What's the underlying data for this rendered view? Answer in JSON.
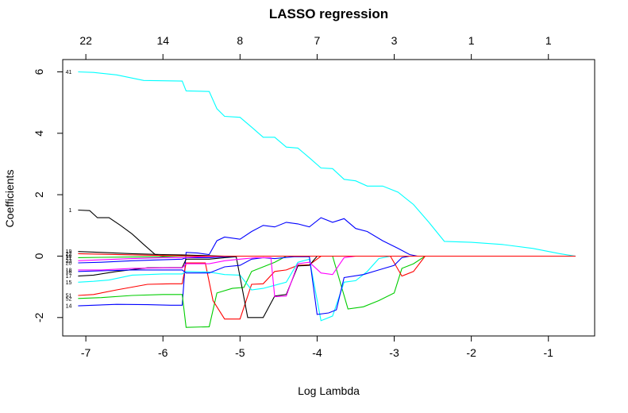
{
  "chart_data": {
    "type": "line",
    "title": "LASSO regression",
    "xlabel": "Log Lambda",
    "ylabel": "Coefficients",
    "xlim": [
      -7.3,
      -0.4
    ],
    "ylim": [
      -2.6,
      6.4
    ],
    "x_ticks": [
      -7,
      -6,
      -5,
      -4,
      -3,
      -2,
      -1
    ],
    "y_ticks": [
      -2,
      0,
      2,
      4,
      6
    ],
    "top_axis_ticks": [
      {
        "x": -7,
        "label": "22"
      },
      {
        "x": -6,
        "label": "14"
      },
      {
        "x": -5,
        "label": "8"
      },
      {
        "x": -4,
        "label": "7"
      },
      {
        "x": -3,
        "label": "3"
      },
      {
        "x": -2,
        "label": "1"
      },
      {
        "x": -1,
        "label": "1"
      }
    ],
    "grid": false,
    "legend": "none",
    "series": [
      {
        "name": "41",
        "color": "#00FFFF",
        "points": [
          [
            -7.1,
            6.0
          ],
          [
            -6.9,
            5.98
          ],
          [
            -6.6,
            5.9
          ],
          [
            -6.25,
            5.72
          ],
          [
            -5.75,
            5.7
          ],
          [
            -5.7,
            5.38
          ],
          [
            -5.4,
            5.36
          ],
          [
            -5.3,
            4.8
          ],
          [
            -5.2,
            4.55
          ],
          [
            -5.0,
            4.52
          ],
          [
            -4.85,
            4.2
          ],
          [
            -4.7,
            3.87
          ],
          [
            -4.55,
            3.87
          ],
          [
            -4.4,
            3.55
          ],
          [
            -4.25,
            3.52
          ],
          [
            -4.1,
            3.2
          ],
          [
            -3.95,
            2.87
          ],
          [
            -3.8,
            2.85
          ],
          [
            -3.65,
            2.5
          ],
          [
            -3.5,
            2.45
          ],
          [
            -3.35,
            2.28
          ],
          [
            -3.15,
            2.28
          ],
          [
            -2.95,
            2.08
          ],
          [
            -2.75,
            1.68
          ],
          [
            -2.55,
            1.1
          ],
          [
            -2.35,
            0.48
          ],
          [
            -2.0,
            0.45
          ],
          [
            -1.6,
            0.38
          ],
          [
            -1.2,
            0.25
          ],
          [
            -0.85,
            0.08
          ],
          [
            -0.65,
            0.0
          ]
        ]
      },
      {
        "name": "1",
        "color": "#000000",
        "points": [
          [
            -7.1,
            1.5
          ],
          [
            -6.95,
            1.48
          ],
          [
            -6.85,
            1.25
          ],
          [
            -6.7,
            1.25
          ],
          [
            -6.55,
            1.0
          ],
          [
            -6.4,
            0.72
          ],
          [
            -6.25,
            0.38
          ],
          [
            -6.1,
            0.05
          ],
          [
            -6.0,
            0.0
          ],
          [
            -0.65,
            0.0
          ]
        ]
      },
      {
        "name": "14",
        "color": "#0000FF",
        "points": [
          [
            -7.1,
            -1.62
          ],
          [
            -6.9,
            -1.6
          ],
          [
            -6.6,
            -1.57
          ],
          [
            -6.2,
            -1.58
          ],
          [
            -5.9,
            -1.6
          ],
          [
            -5.75,
            -1.6
          ],
          [
            -5.7,
            0.12
          ],
          [
            -5.55,
            0.1
          ],
          [
            -5.4,
            0.05
          ],
          [
            -5.3,
            0.5
          ],
          [
            -5.2,
            0.62
          ],
          [
            -5.0,
            0.55
          ],
          [
            -4.85,
            0.8
          ],
          [
            -4.7,
            1.0
          ],
          [
            -4.55,
            0.95
          ],
          [
            -4.4,
            1.1
          ],
          [
            -4.25,
            1.05
          ],
          [
            -4.1,
            0.95
          ],
          [
            -3.95,
            1.25
          ],
          [
            -3.8,
            1.1
          ],
          [
            -3.65,
            1.22
          ],
          [
            -3.5,
            0.9
          ],
          [
            -3.35,
            0.8
          ],
          [
            -3.15,
            0.5
          ],
          [
            -2.95,
            0.25
          ],
          [
            -2.8,
            0.05
          ],
          [
            -2.7,
            0.0
          ],
          [
            -0.65,
            0.0
          ]
        ]
      },
      {
        "name": "52",
        "color": "#00CD00",
        "points": [
          [
            -7.1,
            -1.38
          ],
          [
            -6.8,
            -1.35
          ],
          [
            -6.4,
            -1.28
          ],
          [
            -6.0,
            -1.25
          ],
          [
            -5.75,
            -1.25
          ],
          [
            -5.7,
            -2.32
          ],
          [
            -5.4,
            -2.3
          ],
          [
            -5.3,
            -1.2
          ],
          [
            -5.1,
            -1.05
          ],
          [
            -4.95,
            -1.02
          ],
          [
            -4.85,
            -0.5
          ],
          [
            -4.7,
            -0.35
          ],
          [
            -4.55,
            -0.2
          ],
          [
            -4.4,
            0.0
          ],
          [
            -3.8,
            0.0
          ],
          [
            -3.6,
            -1.72
          ],
          [
            -3.4,
            -1.65
          ],
          [
            -3.2,
            -1.45
          ],
          [
            -3.0,
            -1.2
          ],
          [
            -2.9,
            -0.4
          ],
          [
            -2.75,
            -0.25
          ],
          [
            -2.6,
            0.0
          ],
          [
            -0.65,
            0.0
          ]
        ]
      },
      {
        "name": "51",
        "color": "#FF0000",
        "points": [
          [
            -7.1,
            -1.28
          ],
          [
            -6.9,
            -1.25
          ],
          [
            -6.6,
            -1.1
          ],
          [
            -6.2,
            -0.92
          ],
          [
            -5.9,
            -0.9
          ],
          [
            -5.75,
            -0.9
          ],
          [
            -5.7,
            -0.22
          ],
          [
            -5.45,
            -0.22
          ],
          [
            -5.35,
            -1.45
          ],
          [
            -5.2,
            -2.05
          ],
          [
            -5.0,
            -2.05
          ],
          [
            -4.85,
            -0.92
          ],
          [
            -4.7,
            -0.9
          ],
          [
            -4.55,
            -0.5
          ],
          [
            -4.4,
            -0.45
          ],
          [
            -4.25,
            -0.3
          ],
          [
            -4.1,
            -0.28
          ],
          [
            -3.95,
            0.0
          ],
          [
            -3.05,
            0.0
          ],
          [
            -2.9,
            -0.65
          ],
          [
            -2.75,
            -0.5
          ],
          [
            -2.6,
            0.0
          ],
          [
            -0.65,
            0.0
          ]
        ]
      },
      {
        "name": "15",
        "color": "#00FFFF",
        "points": [
          [
            -7.1,
            -0.85
          ],
          [
            -6.9,
            -0.82
          ],
          [
            -6.7,
            -0.78
          ],
          [
            -6.4,
            -0.62
          ],
          [
            -6.0,
            -0.58
          ],
          [
            -5.75,
            -0.58
          ],
          [
            -5.7,
            -0.5
          ],
          [
            -5.4,
            -0.52
          ],
          [
            -5.2,
            -0.6
          ],
          [
            -5.0,
            -0.62
          ],
          [
            -4.85,
            -1.1
          ],
          [
            -4.7,
            -1.05
          ],
          [
            -4.55,
            -0.95
          ],
          [
            -4.4,
            -0.85
          ],
          [
            -4.25,
            -0.2
          ],
          [
            -4.1,
            -0.1
          ],
          [
            -3.95,
            -2.1
          ],
          [
            -3.8,
            -1.95
          ],
          [
            -3.65,
            -0.85
          ],
          [
            -3.5,
            -0.8
          ],
          [
            -3.35,
            -0.5
          ],
          [
            -3.2,
            -0.08
          ],
          [
            -3.05,
            0.0
          ],
          [
            -0.65,
            0.0
          ]
        ]
      },
      {
        "name": "17",
        "color": "#000000",
        "points": [
          [
            -7.1,
            -0.65
          ],
          [
            -6.9,
            -0.62
          ],
          [
            -6.6,
            -0.5
          ],
          [
            -6.2,
            -0.38
          ],
          [
            -5.75,
            -0.37
          ],
          [
            -5.7,
            -0.1
          ],
          [
            -5.4,
            -0.1
          ],
          [
            -5.2,
            -0.05
          ],
          [
            -5.05,
            -0.02
          ],
          [
            -4.9,
            -2.0
          ],
          [
            -4.7,
            -2.0
          ],
          [
            -4.55,
            -1.3
          ],
          [
            -4.4,
            -1.25
          ],
          [
            -4.25,
            -0.32
          ],
          [
            -4.1,
            -0.3
          ],
          [
            -4.0,
            0.0
          ],
          [
            -0.65,
            0.0
          ]
        ]
      },
      {
        "name": "18",
        "color": "#0000FF",
        "points": [
          [
            -7.1,
            -0.5
          ],
          [
            -6.8,
            -0.48
          ],
          [
            -6.4,
            -0.45
          ],
          [
            -6.0,
            -0.45
          ],
          [
            -5.75,
            -0.45
          ],
          [
            -5.7,
            -0.55
          ],
          [
            -5.4,
            -0.55
          ],
          [
            -5.2,
            -0.35
          ],
          [
            -5.0,
            -0.3
          ],
          [
            -4.85,
            -0.1
          ],
          [
            -4.7,
            -0.05
          ],
          [
            -4.55,
            -0.08
          ],
          [
            -4.3,
            -0.02
          ],
          [
            -4.1,
            -0.02
          ],
          [
            -4.0,
            -1.9
          ],
          [
            -3.85,
            -1.85
          ],
          [
            -3.75,
            -1.75
          ],
          [
            -3.65,
            -0.7
          ],
          [
            -3.4,
            -0.6
          ],
          [
            -3.2,
            -0.45
          ],
          [
            -3.0,
            -0.3
          ],
          [
            -2.9,
            -0.05
          ],
          [
            -2.8,
            0.0
          ],
          [
            -0.65,
            0.0
          ]
        ]
      },
      {
        "name": "16",
        "color": "#FF00FF",
        "points": [
          [
            -7.1,
            -0.45
          ],
          [
            -6.8,
            -0.45
          ],
          [
            -6.4,
            -0.4
          ],
          [
            -6.0,
            -0.38
          ],
          [
            -5.75,
            -0.38
          ],
          [
            -5.7,
            -0.25
          ],
          [
            -5.4,
            -0.25
          ],
          [
            -5.2,
            -0.15
          ],
          [
            -5.0,
            -0.1
          ],
          [
            -4.8,
            -0.05
          ],
          [
            -4.6,
            -0.05
          ],
          [
            -4.55,
            -1.32
          ],
          [
            -4.4,
            -1.3
          ],
          [
            -4.25,
            -0.25
          ],
          [
            -4.1,
            -0.2
          ],
          [
            -3.95,
            -0.55
          ],
          [
            -3.8,
            -0.6
          ],
          [
            -3.65,
            -0.05
          ],
          [
            -3.5,
            0.0
          ],
          [
            -0.65,
            0.0
          ]
        ]
      },
      {
        "name": "20",
        "color": "#0000FF",
        "points": [
          [
            -7.1,
            -0.22
          ],
          [
            -6.8,
            -0.2
          ],
          [
            -6.4,
            -0.15
          ],
          [
            -6.0,
            -0.12
          ],
          [
            -5.75,
            -0.1
          ],
          [
            -5.7,
            -0.05
          ],
          [
            -5.4,
            -0.05
          ],
          [
            -5.2,
            -0.02
          ],
          [
            -5.0,
            0.0
          ],
          [
            -0.65,
            0.0
          ]
        ]
      },
      {
        "name": "23",
        "color": "#FF00FF",
        "points": [
          [
            -7.1,
            -0.15
          ],
          [
            -6.8,
            -0.12
          ],
          [
            -6.4,
            -0.08
          ],
          [
            -6.0,
            -0.05
          ],
          [
            -5.75,
            -0.05
          ],
          [
            -5.5,
            -0.02
          ],
          [
            -5.2,
            0.0
          ],
          [
            -0.65,
            0.0
          ]
        ]
      },
      {
        "name": "21",
        "color": "#00CD00",
        "points": [
          [
            -7.1,
            -0.05
          ],
          [
            -6.8,
            -0.04
          ],
          [
            -6.4,
            -0.03
          ],
          [
            -6.0,
            -0.02
          ],
          [
            -5.8,
            0.0
          ],
          [
            -0.65,
            0.0
          ]
        ]
      },
      {
        "name": "19",
        "color": "#000000",
        "points": [
          [
            -7.1,
            0.15
          ],
          [
            -6.8,
            0.12
          ],
          [
            -6.4,
            0.08
          ],
          [
            -6.0,
            0.05
          ],
          [
            -5.75,
            0.04
          ],
          [
            -5.5,
            0.02
          ],
          [
            -5.2,
            0.0
          ],
          [
            -0.65,
            0.0
          ]
        ]
      },
      {
        "name": "22",
        "color": "#FF0000",
        "points": [
          [
            -7.1,
            0.08
          ],
          [
            -6.8,
            0.06
          ],
          [
            -6.4,
            0.04
          ],
          [
            -6.0,
            0.02
          ],
          [
            -5.75,
            0.01
          ],
          [
            -5.5,
            0.0
          ],
          [
            -0.65,
            0.0
          ]
        ]
      }
    ],
    "left_labels": [
      {
        "text": "41",
        "y": 6.0
      },
      {
        "text": "1",
        "y": 1.5
      },
      {
        "text": "19",
        "y": 0.15
      },
      {
        "text": "22",
        "y": 0.08
      },
      {
        "text": "10",
        "y": 0.0
      },
      {
        "text": "21",
        "y": -0.05
      },
      {
        "text": "23",
        "y": -0.15
      },
      {
        "text": "20",
        "y": -0.22
      },
      {
        "text": "18",
        "y": -0.45
      },
      {
        "text": "16",
        "y": -0.5
      },
      {
        "text": "17",
        "y": -0.65
      },
      {
        "text": "15",
        "y": -0.85
      },
      {
        "text": "51",
        "y": -1.28
      },
      {
        "text": "52",
        "y": -1.38
      },
      {
        "text": "14",
        "y": -1.62
      }
    ]
  }
}
